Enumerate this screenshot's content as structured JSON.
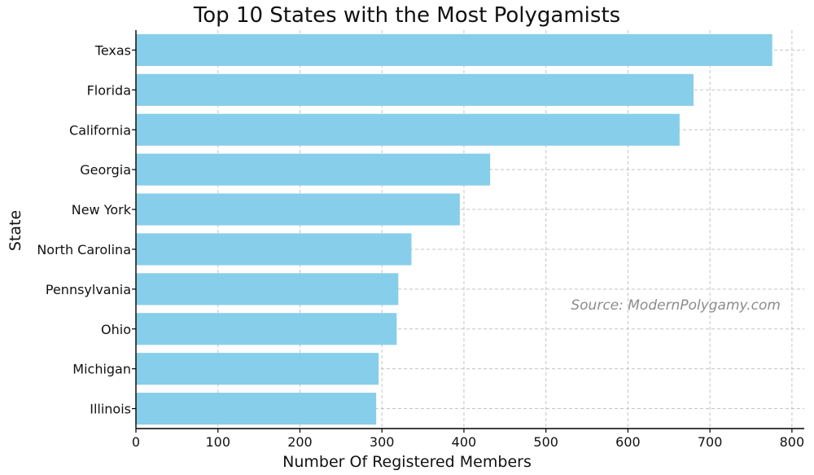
{
  "chart_data": {
    "type": "bar",
    "orientation": "horizontal",
    "title": "Top 10 States with the Most Polygamists",
    "xlabel": "Number Of Registered Members",
    "ylabel": "State",
    "categories": [
      "Texas",
      "Florida",
      "California",
      "Georgia",
      "New York",
      "North Carolina",
      "Pennsylvania",
      "Ohio",
      "Michigan",
      "Illinois"
    ],
    "values": [
      776,
      680,
      663,
      432,
      395,
      336,
      320,
      318,
      296,
      293
    ],
    "xlim": [
      0,
      815
    ],
    "xticks": [
      0,
      100,
      200,
      300,
      400,
      500,
      600,
      700,
      800
    ],
    "grid": true,
    "annotation": "Source: ModernPolygamy.com",
    "bar_color": "#87CEEB"
  }
}
